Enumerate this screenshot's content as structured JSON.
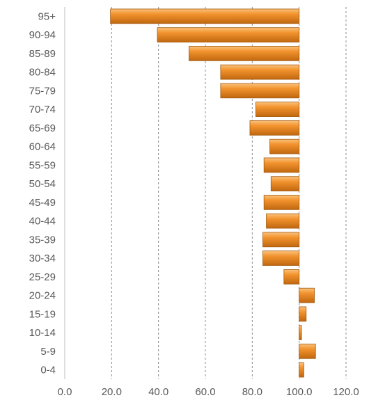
{
  "chart_data": {
    "type": "bar",
    "orientation": "horizontal",
    "title": "",
    "xlabel": "",
    "ylabel": "",
    "baseline": 100,
    "xlim": [
      0,
      120
    ],
    "xticks": [
      "0.0",
      "20.0",
      "40.0",
      "60.0",
      "80.0",
      "100.0",
      "120.0"
    ],
    "grid": "vertical-dashed",
    "legend": "none",
    "bar_color": "#f2932e",
    "bar_color_light": "#fbc27c",
    "bar_color_dark": "#c0670f",
    "bar_edge": "#a35a10",
    "categories": [
      "95+",
      "90-94",
      "85-89",
      "80-84",
      "75-79",
      "70-74",
      "65-69",
      "60-64",
      "55-59",
      "50-54",
      "45-49",
      "40-44",
      "35-39",
      "30-34",
      "25-29",
      "20-24",
      "15-19",
      "10-14",
      "5-9",
      "0-4"
    ],
    "values": [
      19.5,
      39.5,
      53,
      66.5,
      66.5,
      81.5,
      79,
      87.5,
      85,
      88,
      85,
      86,
      84.5,
      84.5,
      93.5,
      106.5,
      103,
      101,
      107,
      102
    ]
  }
}
